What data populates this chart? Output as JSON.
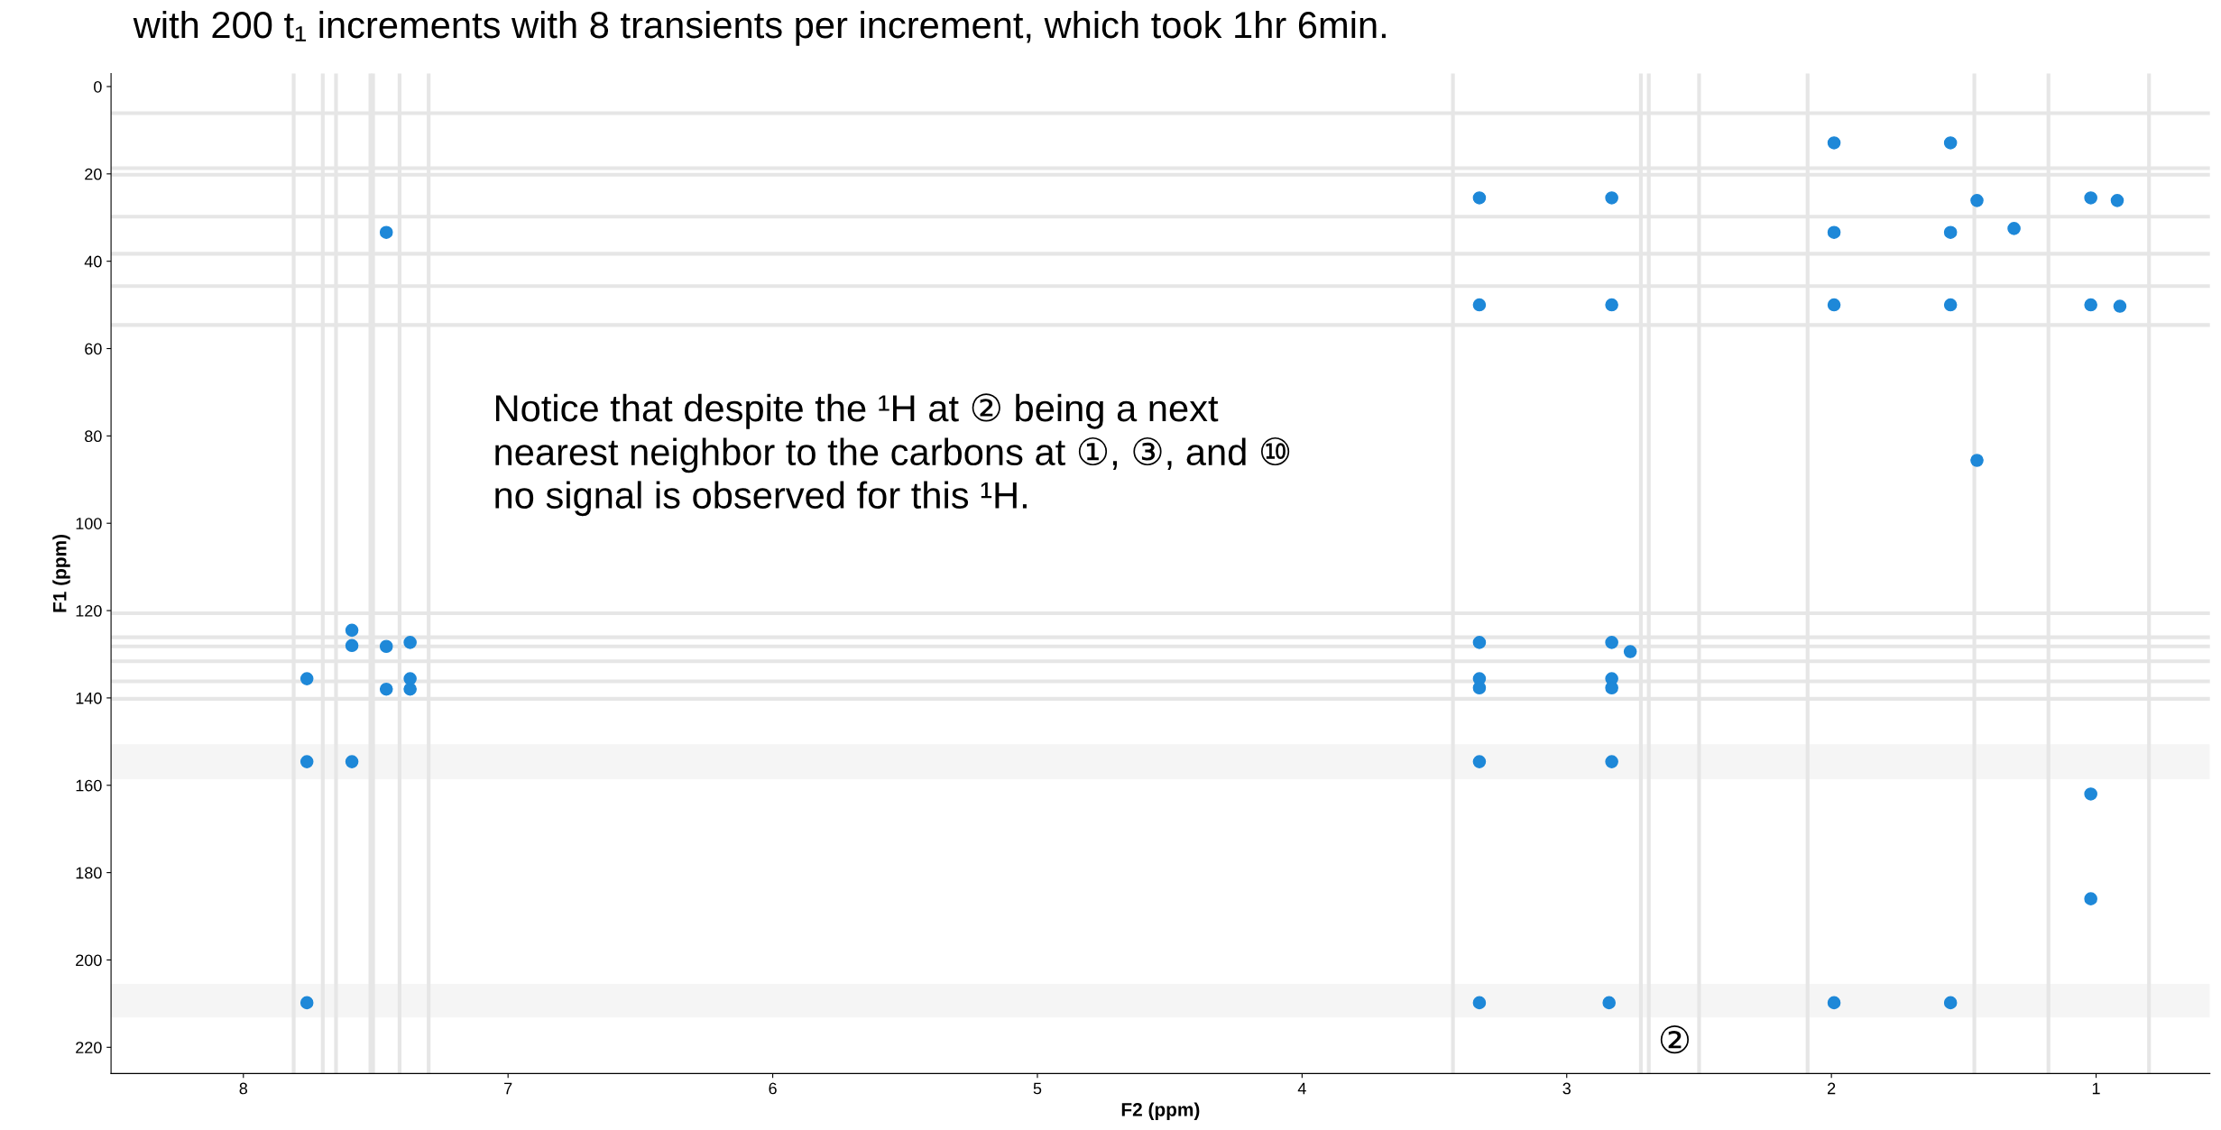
{
  "chart_data": {
    "type": "scatter",
    "xlabel": "F2 (ppm)",
    "ylabel": "F1 (ppm)",
    "xlim": [
      8.5,
      0.57
    ],
    "ylim": [
      226,
      -3
    ],
    "xticks": [
      8,
      7,
      6,
      5,
      4,
      3,
      2,
      1
    ],
    "yticks": [
      0,
      20,
      40,
      60,
      80,
      100,
      120,
      140,
      160,
      180,
      200,
      220
    ],
    "grid": false,
    "marker": "circle",
    "legend": false,
    "series": [
      {
        "color": "#1e88d8",
        "x": [
          7.46,
          3.33,
          2.83,
          1.99,
          1.55,
          3.33,
          2.83,
          1.99,
          1.55,
          1.99,
          1.55,
          1.45,
          1.31,
          1.02,
          0.92,
          1.02,
          0.91,
          1.45,
          1.02,
          1.02,
          7.76,
          7.76,
          7.59,
          7.59,
          7.59,
          7.46,
          7.37,
          7.37,
          7.37,
          7.46,
          7.76,
          3.33,
          2.83,
          3.33,
          3.33,
          2.83,
          2.83,
          3.33,
          2.83,
          3.33,
          2.84,
          1.99,
          1.55,
          2.76
        ],
        "values": [
          33.4,
          25.5,
          25.5,
          12.9,
          12.9,
          50,
          50,
          33.4,
          33.4,
          50,
          50,
          26.1,
          32.5,
          25.5,
          26.1,
          50,
          50.3,
          85.6,
          162,
          186,
          135.6,
          154.6,
          154.6,
          124.5,
          128,
          138,
          138,
          127.3,
          135.6,
          128.2,
          209.8,
          127.3,
          127.3,
          135.6,
          137.7,
          135.6,
          137.7,
          154.6,
          154.6,
          209.8,
          209.8,
          209.8,
          209.8,
          129.4
        ]
      }
    ],
    "ref_lines": [
      {
        "axis": "x",
        "value": 7.81,
        "color": "#e6e6e6"
      },
      {
        "axis": "x",
        "value": 7.7,
        "color": "#e6e6e6"
      },
      {
        "axis": "x",
        "value": 7.65,
        "color": "#e6e6e6"
      },
      {
        "axis": "x",
        "value": 7.52,
        "color": "#e6e6e6"
      },
      {
        "axis": "x",
        "value": 7.51,
        "color": "#e6e6e6"
      },
      {
        "axis": "x",
        "value": 7.41,
        "color": "#e6e6e6"
      },
      {
        "axis": "x",
        "value": 7.3,
        "color": "#e6e6e6"
      },
      {
        "axis": "x",
        "value": 3.43,
        "color": "#e6e6e6"
      },
      {
        "axis": "x",
        "value": 2.72,
        "color": "#e6e6e6"
      },
      {
        "axis": "x",
        "value": 2.69,
        "color": "#e6e6e6"
      },
      {
        "axis": "x",
        "value": 2.5,
        "color": "#e6e6e6"
      },
      {
        "axis": "x",
        "value": 2.09,
        "color": "#e6e6e6"
      },
      {
        "axis": "x",
        "value": 1.46,
        "color": "#e6e6e6"
      },
      {
        "axis": "x",
        "value": 1.18,
        "color": "#e6e6e6"
      },
      {
        "axis": "x",
        "value": 0.8,
        "color": "#e6e6e6"
      },
      {
        "axis": "y",
        "value": 6.1,
        "color": "#e6e6e6"
      },
      {
        "axis": "y",
        "value": 18.7,
        "color": "#e6e6e6"
      },
      {
        "axis": "y",
        "value": 20.2,
        "color": "#e6e6e6"
      },
      {
        "axis": "y",
        "value": 29.8,
        "color": "#e6e6e6"
      },
      {
        "axis": "y",
        "value": 38.3,
        "color": "#e6e6e6"
      },
      {
        "axis": "y",
        "value": 45.7,
        "color": "#e6e6e6"
      },
      {
        "axis": "y",
        "value": 54.6,
        "color": "#e6e6e6"
      },
      {
        "axis": "y",
        "value": 120.6,
        "color": "#e6e6e6"
      },
      {
        "axis": "y",
        "value": 126.1,
        "color": "#e6e6e6"
      },
      {
        "axis": "y",
        "value": 128.2,
        "color": "#e6e6e6"
      },
      {
        "axis": "y",
        "value": 131.6,
        "color": "#e6e6e6"
      },
      {
        "axis": "y",
        "value": 136.2,
        "color": "#e6e6e6"
      },
      {
        "axis": "y",
        "value": 140.2,
        "color": "#e6e6e6"
      }
    ],
    "bands": [
      {
        "axis": "y",
        "from": 150.6,
        "to": 158.6,
        "color": "#f5f5f5"
      },
      {
        "axis": "y",
        "from": 205.5,
        "to": 213.2,
        "color": "#f5f5f5"
      }
    ],
    "annotations": [
      "with 200 t₁ increments with 8 transients per increment, which took 1hr 6min.",
      "Notice that despite the ¹H at ② being a next\nnearest neighbor to the carbons at ①, ③, and ⑩\nno signal is observed for this ¹H.",
      "②"
    ]
  }
}
